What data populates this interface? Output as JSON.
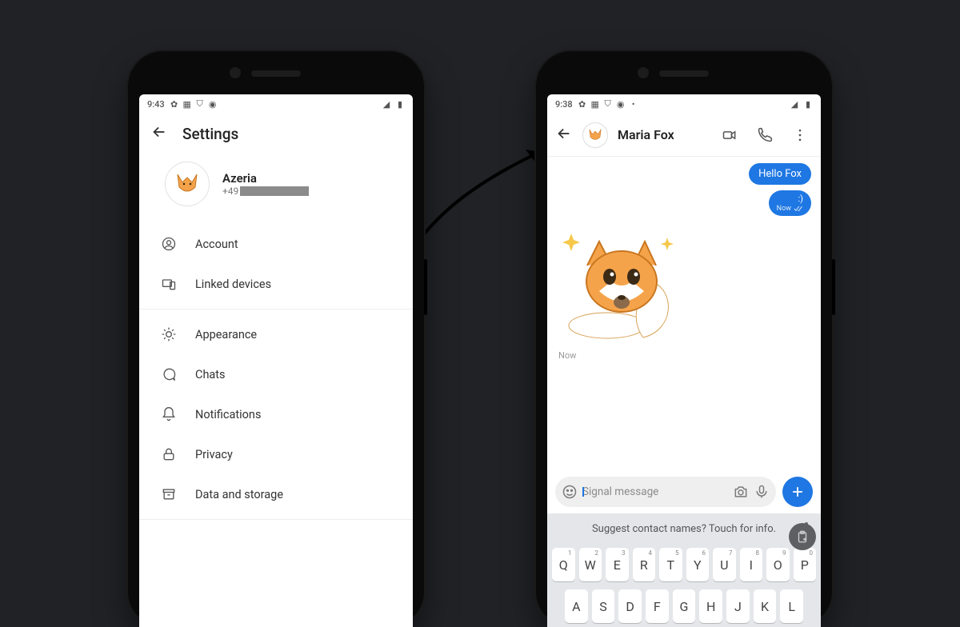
{
  "colors": {
    "page_bg": "#212226",
    "phone_body": "#0a0a0a",
    "screen_bg": "#ffffff",
    "accent_blue": "#1e77e3",
    "divider": "#eeeeee",
    "muted_text": "#777777",
    "keyboard_bg": "#e4e6ea",
    "fox_orange": "#f5a34a"
  },
  "left": {
    "status_time": "9:43",
    "title": "Settings",
    "profile": {
      "name": "Azeria",
      "phone_prefix": "+49"
    },
    "items": [
      {
        "icon": "user-circle-icon",
        "label": "Account"
      },
      {
        "icon": "devices-icon",
        "label": "Linked devices"
      },
      {
        "icon": "sun-icon",
        "label": "Appearance"
      },
      {
        "icon": "chat-icon",
        "label": "Chats"
      },
      {
        "icon": "bell-icon",
        "label": "Notifications"
      },
      {
        "icon": "lock-icon",
        "label": "Privacy"
      },
      {
        "icon": "archive-icon",
        "label": "Data and storage"
      }
    ]
  },
  "right": {
    "status_time": "9:38",
    "contact_name": "Maria Fox",
    "messages": {
      "outgoing_text": "Hello Fox",
      "outgoing_emote": ":)",
      "outgoing_meta": "Now"
    },
    "sticker_timestamp": "Now",
    "composer_placeholder": "Signal message",
    "keyboard": {
      "suggestion_text": "Suggest contact names? Touch for info.",
      "row1": [
        "Q",
        "W",
        "E",
        "R",
        "T",
        "Y",
        "U",
        "I",
        "O",
        "P"
      ],
      "row1_nums": [
        "1",
        "2",
        "3",
        "4",
        "5",
        "6",
        "7",
        "8",
        "9",
        "0"
      ],
      "row2": [
        "A",
        "S",
        "D",
        "F",
        "G",
        "H",
        "J",
        "K",
        "L"
      ]
    }
  }
}
